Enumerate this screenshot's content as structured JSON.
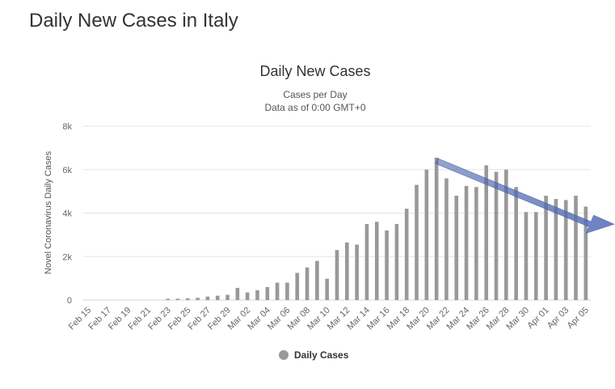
{
  "page": {
    "title": "Daily New Cases in Italy"
  },
  "chart_data": {
    "type": "bar",
    "title": "Daily New Cases",
    "subtitle_lines": [
      "Cases per Day",
      "Data as of 0:00 GMT+0"
    ],
    "ylabel": "Novel Coronavirus Daily Cases",
    "xlabel": "",
    "ylim": [
      0,
      8000
    ],
    "y_ticks": [
      0,
      2000,
      4000,
      6000,
      8000
    ],
    "y_tick_labels": [
      "0",
      "2k",
      "4k",
      "6k",
      "8k"
    ],
    "grid": true,
    "legend_position": "bottom-center",
    "bar_color": "#999999",
    "trend_arrow_color": "#5b73b8",
    "categories": [
      "Feb 15",
      "Feb 16",
      "Feb 17",
      "Feb 18",
      "Feb 19",
      "Feb 20",
      "Feb 21",
      "Feb 22",
      "Feb 23",
      "Feb 24",
      "Feb 25",
      "Feb 26",
      "Feb 27",
      "Feb 28",
      "Feb 29",
      "Mar 01",
      "Mar 02",
      "Mar 03",
      "Mar 04",
      "Mar 05",
      "Mar 06",
      "Mar 07",
      "Mar 08",
      "Mar 09",
      "Mar 10",
      "Mar 11",
      "Mar 12",
      "Mar 13",
      "Mar 14",
      "Mar 15",
      "Mar 16",
      "Mar 17",
      "Mar 18",
      "Mar 19",
      "Mar 20",
      "Mar 21",
      "Mar 22",
      "Mar 23",
      "Mar 24",
      "Mar 25",
      "Mar 26",
      "Mar 27",
      "Mar 28",
      "Mar 29",
      "Mar 30",
      "Mar 31",
      "Apr 01",
      "Apr 02",
      "Apr 03",
      "Apr 04",
      "Apr 05"
    ],
    "x_tick_labels": [
      "Feb 15",
      "Feb 17",
      "Feb 19",
      "Feb 21",
      "Feb 23",
      "Feb 25",
      "Feb 27",
      "Feb 29",
      "Mar 02",
      "Mar 04",
      "Mar 06",
      "Mar 08",
      "Mar 10",
      "Mar 12",
      "Mar 14",
      "Mar 16",
      "Mar 18",
      "Mar 20",
      "Mar 22",
      "Mar 24",
      "Mar 26",
      "Mar 28",
      "Mar 30",
      "Apr 01",
      "Apr 03",
      "Apr 05"
    ],
    "series": [
      {
        "name": "Daily Cases",
        "values": [
          0,
          0,
          0,
          0,
          0,
          0,
          0,
          0,
          60,
          60,
          80,
          100,
          160,
          200,
          240,
          560,
          350,
          450,
          600,
          800,
          800,
          1250,
          1500,
          1800,
          980,
          2300,
          2650,
          2550,
          3500,
          3600,
          3200,
          3500,
          4200,
          5300,
          6000,
          6550,
          5600,
          4800,
          5250,
          5200,
          6200,
          5900,
          6000,
          5200,
          4050,
          4050,
          4800,
          4650,
          4600,
          4800,
          4300
        ]
      }
    ],
    "annotation": {
      "type": "trend-arrow",
      "from_category": "Mar 21",
      "from_value": 6400,
      "to_value": 3900
    }
  }
}
